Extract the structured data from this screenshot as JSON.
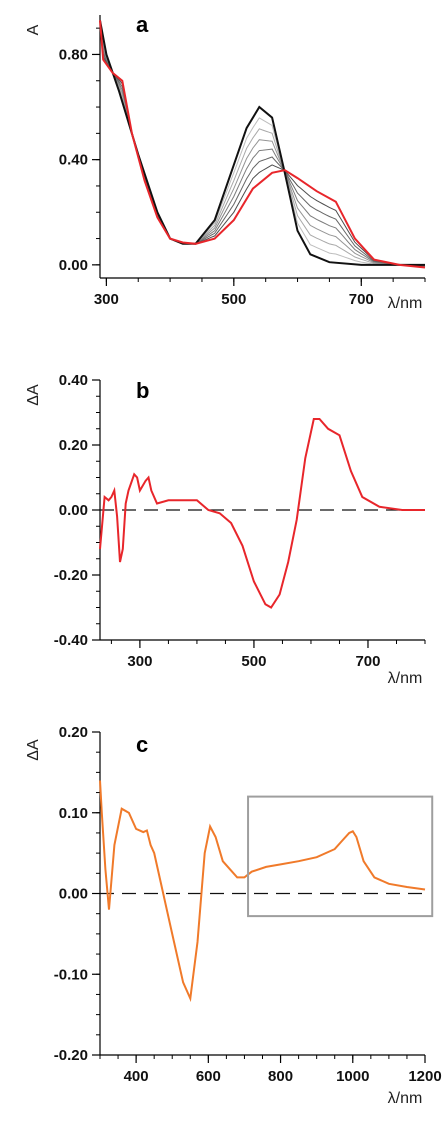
{
  "chart_data": [
    {
      "type": "line",
      "panel_label": "a",
      "xlabel": "λ/nm",
      "ylabel": "A",
      "xlim": [
        290,
        800
      ],
      "ylim": [
        -0.05,
        0.95
      ],
      "xticks": [
        300,
        500,
        700
      ],
      "xtick_labels": [
        "300",
        "500",
        "700"
      ],
      "yticks": [
        0.0,
        0.4,
        0.8
      ],
      "ytick_labels": [
        "0.00",
        "0.40",
        "0.80"
      ],
      "colors": {
        "final": "#e8262b",
        "initial": "#111111",
        "intermediate": [
          "#bdbdbd",
          "#a9a9a9",
          "#959595",
          "#7d7d7d",
          "#666666",
          "#4d4d4d"
        ]
      },
      "series": [
        {
          "role": "initial",
          "x": [
            290,
            300,
            320,
            350,
            380,
            400,
            420,
            440,
            470,
            500,
            520,
            540,
            560,
            580,
            600,
            620,
            650,
            700,
            750,
            800
          ],
          "values": [
            0.93,
            0.8,
            0.66,
            0.42,
            0.2,
            0.1,
            0.08,
            0.08,
            0.17,
            0.38,
            0.52,
            0.6,
            0.56,
            0.35,
            0.13,
            0.04,
            0.01,
            0.0,
            0.0,
            0.0
          ]
        },
        {
          "role": "final",
          "x": [
            290,
            295,
            310,
            325,
            340,
            360,
            380,
            400,
            420,
            440,
            470,
            500,
            530,
            560,
            580,
            600,
            630,
            660,
            690,
            720,
            760,
            800
          ],
          "values": [
            0.93,
            0.78,
            0.73,
            0.7,
            0.5,
            0.32,
            0.18,
            0.1,
            0.085,
            0.08,
            0.1,
            0.17,
            0.29,
            0.35,
            0.36,
            0.33,
            0.28,
            0.24,
            0.1,
            0.02,
            0.0,
            -0.01
          ]
        }
      ]
    },
    {
      "type": "line",
      "panel_label": "b",
      "xlabel": "λ/nm",
      "ylabel": "ΔA",
      "xlim": [
        230,
        800
      ],
      "ylim": [
        -0.4,
        0.4
      ],
      "xticks": [
        300,
        500,
        700
      ],
      "xtick_labels": [
        "300",
        "500",
        "700"
      ],
      "yticks": [
        -0.4,
        -0.2,
        0.0,
        0.2,
        0.4
      ],
      "ytick_labels": [
        "-0.40",
        "-0.20",
        "0.00",
        "0.20",
        "0.40"
      ],
      "colors": {
        "line": "#e8262b",
        "zero": "#111111"
      },
      "series": [
        {
          "x": [
            230,
            238,
            245,
            250,
            255,
            260,
            265,
            270,
            275,
            280,
            290,
            295,
            300,
            310,
            315,
            320,
            330,
            350,
            380,
            400,
            420,
            440,
            460,
            480,
            500,
            520,
            530,
            545,
            560,
            575,
            590,
            605,
            615,
            630,
            650,
            670,
            690,
            720,
            760,
            800
          ],
          "values": [
            -0.12,
            0.04,
            0.03,
            0.04,
            0.06,
            -0.02,
            -0.16,
            -0.12,
            0.02,
            0.06,
            0.11,
            0.1,
            0.06,
            0.09,
            0.1,
            0.06,
            0.02,
            0.03,
            0.03,
            0.03,
            0.0,
            -0.01,
            -0.04,
            -0.11,
            -0.22,
            -0.29,
            -0.3,
            -0.26,
            -0.16,
            -0.03,
            0.16,
            0.28,
            0.28,
            0.25,
            0.23,
            0.12,
            0.04,
            0.01,
            0.0,
            0.0
          ]
        }
      ]
    },
    {
      "type": "line",
      "panel_label": "c",
      "xlabel": "λ/nm",
      "ylabel": "ΔA",
      "xlim": [
        300,
        1200
      ],
      "ylim": [
        -0.2,
        0.2
      ],
      "xticks": [
        400,
        600,
        800,
        1000,
        1200
      ],
      "xtick_labels": [
        "400",
        "600",
        "800",
        "1000",
        "1200"
      ],
      "yticks": [
        -0.2,
        -0.1,
        0.0,
        0.1,
        0.2
      ],
      "ytick_labels": [
        "-0.20",
        "-0.10",
        "0.00",
        "0.10",
        "0.20"
      ],
      "colors": {
        "line": "#f07a2a",
        "zero": "#111111",
        "box": "#9e9e9e"
      },
      "series": [
        {
          "x": [
            300,
            305,
            315,
            325,
            340,
            360,
            380,
            400,
            420,
            430,
            440,
            450,
            470,
            500,
            530,
            550,
            570,
            590,
            605,
            620,
            640,
            660,
            680,
            700,
            720,
            760,
            800,
            850,
            900,
            950,
            970,
            990,
            1000,
            1010,
            1030,
            1060,
            1100,
            1150,
            1200
          ],
          "values": [
            0.14,
            0.1,
            0.03,
            -0.02,
            0.06,
            0.105,
            0.1,
            0.08,
            0.076,
            0.078,
            0.06,
            0.05,
            0.01,
            -0.05,
            -0.11,
            -0.13,
            -0.06,
            0.05,
            0.083,
            0.07,
            0.04,
            0.03,
            0.02,
            0.02,
            0.027,
            0.033,
            0.036,
            0.04,
            0.045,
            0.055,
            0.065,
            0.075,
            0.077,
            0.07,
            0.04,
            0.02,
            0.012,
            0.008,
            0.005
          ]
        }
      ],
      "highlight_box": {
        "x": [
          710,
          1220
        ],
        "y": [
          -0.028,
          0.12
        ]
      }
    }
  ]
}
